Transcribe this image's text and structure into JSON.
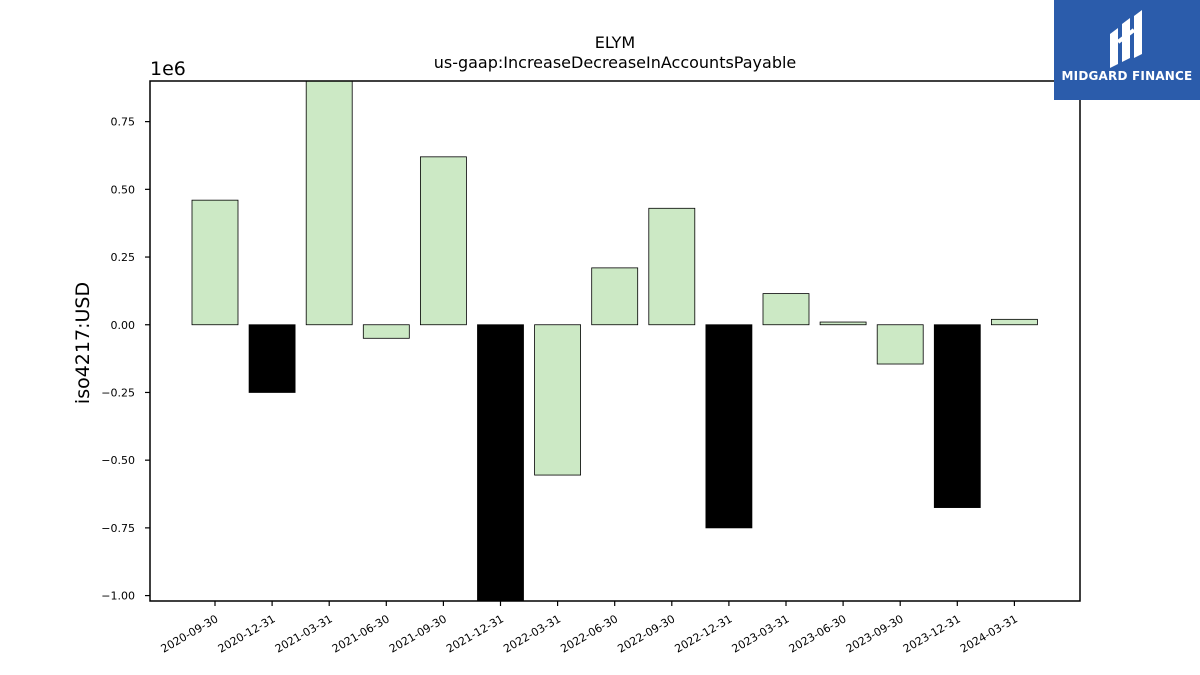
{
  "chart_data": {
    "type": "bar",
    "title": "ELYM",
    "subtitle": "us-gaap:IncreaseDecreaseInAccountsPayable",
    "xlabel": "",
    "ylabel": "iso4217:USD",
    "scale_label": "1e6",
    "ylim": [
      -1.02,
      0.9
    ],
    "yticks": [
      -1.0,
      -0.75,
      -0.5,
      -0.25,
      0.0,
      0.25,
      0.5,
      0.75
    ],
    "ytick_labels": [
      "−1.00",
      "−0.75",
      "−0.50",
      "−0.25",
      "0.00",
      "0.25",
      "0.50",
      "0.75"
    ],
    "categories": [
      "2020-09-30",
      "2020-12-31",
      "2021-03-31",
      "2021-06-30",
      "2021-09-30",
      "2021-12-31",
      "2022-03-31",
      "2022-06-30",
      "2022-09-30",
      "2022-12-31",
      "2023-03-31",
      "2023-06-30",
      "2023-09-30",
      "2023-12-31",
      "2024-03-31"
    ],
    "values": [
      0.46,
      -0.25,
      0.9,
      -0.05,
      0.62,
      -1.02,
      -0.555,
      0.21,
      0.43,
      -0.75,
      0.115,
      0.01,
      -0.145,
      -0.675,
      0.02
    ],
    "bar_colors": [
      "#cce9c5",
      "#000000",
      "#cce9c5",
      "#cce9c5",
      "#cce9c5",
      "#000000",
      "#cce9c5",
      "#cce9c5",
      "#cce9c5",
      "#000000",
      "#cce9c5",
      "#cce9c5",
      "#cce9c5",
      "#000000",
      "#cce9c5"
    ],
    "grid": false
  },
  "logo": {
    "text": "MIDGARD FINANCE",
    "background": "#2b5cab"
  }
}
